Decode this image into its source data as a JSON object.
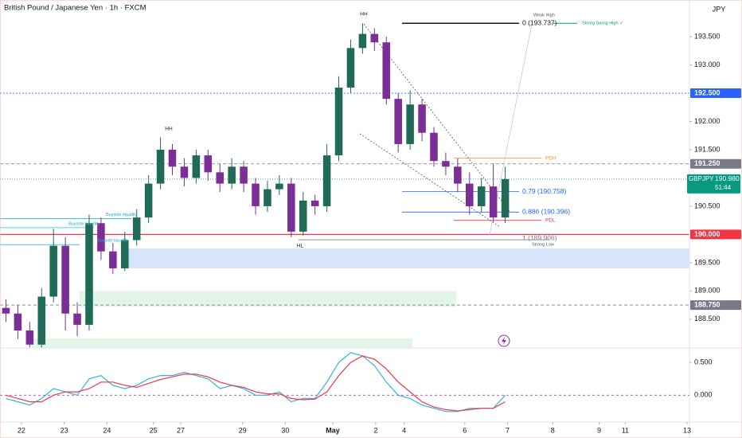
{
  "chart_data": {
    "type": "candlestick",
    "title": "British Pound / Japanese Yen · 1h · FXCM",
    "currency": "JPY",
    "xlim": [
      -0.5,
      57.5
    ],
    "ylim": [
      187.99,
      194.15
    ],
    "yticks": [
      {
        "value": 193.5,
        "label": "193.500"
      },
      {
        "value": 193.0,
        "label": "193.000"
      },
      {
        "value": 192.0,
        "label": "192.000"
      },
      {
        "value": 191.5,
        "label": "191.500"
      },
      {
        "value": 190.5,
        "label": "190.500"
      },
      {
        "value": 189.5,
        "label": "189.500"
      },
      {
        "value": 189.0,
        "label": "189.000"
      },
      {
        "value": 188.5,
        "label": "188.500"
      }
    ],
    "xticks": [
      {
        "value": 1.3,
        "label": "22"
      },
      {
        "value": 4.9,
        "label": "23"
      },
      {
        "value": 8.5,
        "label": "24"
      },
      {
        "value": 12.4,
        "label": "25"
      },
      {
        "value": 14.7,
        "label": "27"
      },
      {
        "value": 19.9,
        "label": "29"
      },
      {
        "value": 23.5,
        "label": "30"
      },
      {
        "value": 27.5,
        "label": "May"
      },
      {
        "value": 31.1,
        "label": "2"
      },
      {
        "value": 33.5,
        "label": "4"
      },
      {
        "value": 38.6,
        "label": "6"
      },
      {
        "value": 42.2,
        "label": "7"
      },
      {
        "value": 46,
        "label": "8"
      },
      {
        "value": 49.9,
        "label": "9"
      },
      {
        "value": 52.1,
        "label": "11"
      },
      {
        "value": 57.3,
        "label": "13"
      }
    ],
    "up_color": "#1f6b57",
    "down_color": "#7b2f96",
    "open": [
      188.7,
      188.6,
      188.3,
      188.05,
      188.9,
      189.8,
      188.6,
      188.4,
      190.2,
      189.7,
      189.4,
      189.9,
      190.3,
      190.9,
      191.5,
      191.2,
      191.0,
      191.4,
      191.1,
      190.9,
      191.2,
      190.9,
      190.5,
      190.8,
      190.9,
      190.05,
      190.6,
      190.5,
      191.4,
      192.6,
      193.3,
      193.55,
      193.4,
      192.4,
      191.6,
      192.3,
      191.8,
      191.3,
      191.2,
      190.9,
      190.5,
      190.85,
      190.3
    ],
    "high": [
      188.85,
      188.75,
      188.45,
      189.05,
      190.1,
      189.95,
      188.8,
      190.35,
      190.3,
      189.85,
      190.05,
      190.45,
      191.05,
      191.72,
      191.6,
      191.35,
      191.5,
      191.5,
      191.25,
      191.35,
      191.3,
      191.0,
      190.95,
      191.05,
      191.0,
      190.75,
      190.7,
      191.6,
      192.8,
      193.45,
      193.737,
      193.65,
      193.5,
      192.5,
      192.55,
      192.4,
      191.9,
      191.45,
      191.35,
      191.1,
      191.0,
      191.25,
      191.2
    ],
    "low": [
      188.45,
      188.15,
      188.0,
      188.0,
      188.8,
      188.3,
      188.2,
      188.3,
      189.55,
      189.3,
      189.35,
      189.8,
      190.2,
      190.8,
      191.05,
      190.85,
      190.9,
      190.95,
      190.75,
      190.8,
      190.75,
      190.35,
      190.4,
      190.7,
      189.95,
      189.98,
      190.35,
      190.4,
      191.3,
      192.5,
      193.2,
      193.25,
      192.3,
      191.45,
      191.5,
      191.65,
      191.2,
      191.05,
      190.75,
      190.35,
      190.4,
      190.22,
      190.2
    ],
    "close": [
      188.6,
      188.3,
      188.05,
      188.9,
      189.8,
      188.6,
      188.4,
      190.2,
      189.7,
      189.4,
      189.9,
      190.3,
      190.9,
      191.5,
      191.2,
      191.0,
      191.4,
      191.1,
      190.9,
      191.2,
      190.9,
      190.5,
      190.8,
      190.9,
      190.05,
      190.6,
      190.5,
      191.4,
      192.6,
      193.3,
      193.55,
      193.4,
      192.4,
      191.6,
      192.3,
      191.8,
      191.3,
      191.2,
      190.9,
      190.5,
      190.85,
      190.3,
      190.98
    ],
    "levels": [
      {
        "value": 192.5,
        "label": "192.500",
        "color": "#2962ff"
      },
      {
        "value": 191.25,
        "label": "191.250",
        "color": "#787b86"
      },
      {
        "value": 190.0,
        "label": "190.000",
        "color": "#f23645"
      },
      {
        "value": 188.75,
        "label": "188.750",
        "color": "#787b86"
      }
    ],
    "last_price": {
      "symbol": "GBPJPY",
      "value": 190.98,
      "label": "190.980",
      "countdown": "51:44",
      "color": "#089981"
    },
    "zones": [
      {
        "low": 189.4,
        "high": 189.75,
        "color": "#cfe0fb"
      },
      {
        "low": 188.72,
        "high": 189.0,
        "color": "#dcf5e4"
      },
      {
        "low": 188.0,
        "high": 188.16,
        "color": "#dcf5e4"
      }
    ],
    "fib": [
      {
        "value": 193.737,
        "label": "0 (193.737)",
        "color": "#131722"
      },
      {
        "value": 190.758,
        "label": "0.79 (190.758)",
        "color": "#2962ff"
      },
      {
        "value": 190.396,
        "label": "0.886 (190.396)",
        "color": "#2962ff"
      },
      {
        "value": 189.906,
        "label": "1 (189.906)",
        "color": "#787b86"
      }
    ],
    "session_levels": [
      {
        "label": "PDH",
        "value": 191.35,
        "color": "#f7931a"
      },
      {
        "label": "PDL",
        "value": 190.25,
        "color": "#f23645"
      }
    ],
    "liquidity": [
      {
        "label": "Buyside liquidity",
        "value": 190.28
      },
      {
        "label": "Buyside liquidity",
        "value": 190.12
      },
      {
        "label": "Buyside liquidity",
        "value": 189.82
      }
    ],
    "structure_labels": [
      "HH",
      "HH",
      "HL"
    ],
    "swing_labels": [
      "Weak High",
      "Strong Swing High ✓",
      "Strong Low"
    ],
    "oscillator": {
      "ylim": [
        -0.41,
        0.72
      ],
      "yticks": [
        {
          "value": 0.5,
          "label": "0.500"
        },
        {
          "value": 0,
          "label": "0.000"
        }
      ],
      "zero_color": "#9c27b0",
      "series": [
        {
          "color": "#2fb4e0",
          "values": [
            -0.05,
            -0.1,
            -0.15,
            -0.05,
            0.1,
            0.05,
            0.0,
            0.25,
            0.3,
            0.15,
            0.1,
            0.15,
            0.25,
            0.3,
            0.3,
            0.35,
            0.3,
            0.25,
            0.1,
            0.15,
            0.1,
            0.0,
            0.0,
            0.05,
            -0.1,
            -0.05,
            -0.05,
            0.2,
            0.5,
            0.65,
            0.6,
            0.45,
            0.2,
            0.0,
            -0.05,
            -0.15,
            -0.2,
            -0.25,
            -0.25,
            -0.2,
            -0.2,
            -0.2,
            0.0
          ]
        },
        {
          "color": "#f23645",
          "values": [
            0.0,
            -0.05,
            -0.1,
            -0.1,
            0.0,
            0.05,
            0.05,
            0.1,
            0.2,
            0.2,
            0.15,
            0.12,
            0.18,
            0.24,
            0.28,
            0.32,
            0.32,
            0.28,
            0.2,
            0.15,
            0.12,
            0.05,
            0.02,
            0.02,
            -0.05,
            -0.07,
            -0.06,
            0.05,
            0.3,
            0.5,
            0.6,
            0.55,
            0.4,
            0.2,
            0.05,
            -0.1,
            -0.18,
            -0.22,
            -0.24,
            -0.22,
            -0.2,
            -0.2,
            -0.1
          ]
        }
      ]
    }
  }
}
